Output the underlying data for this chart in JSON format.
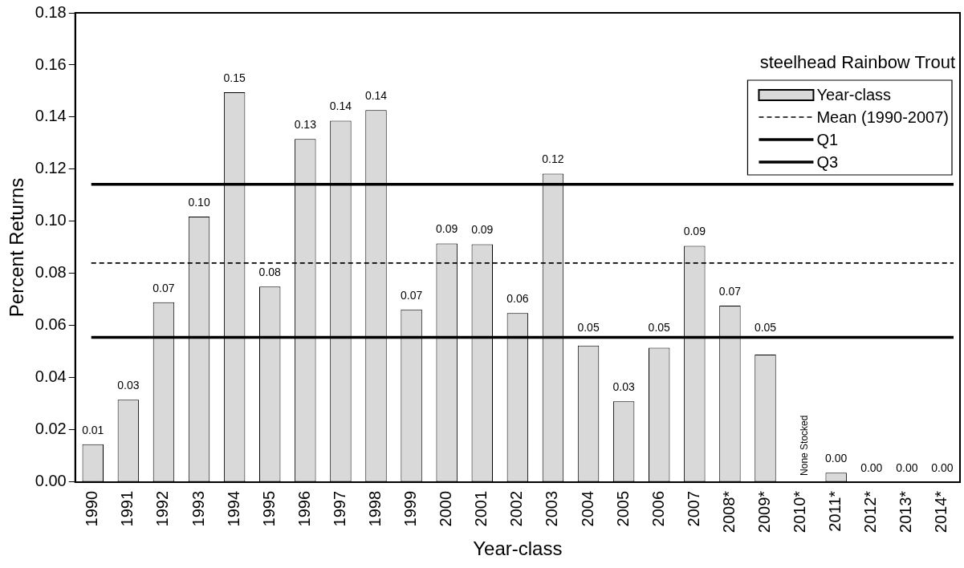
{
  "chart_data": {
    "type": "bar",
    "xlabel": "Year-class",
    "ylabel": "Percent Returns",
    "legend_title": "steelhead Rainbow Trout",
    "legend": "top right",
    "categories": [
      "1990",
      "1991",
      "1992",
      "1993",
      "1994",
      "1995",
      "1996",
      "1997",
      "1998",
      "1999",
      "2000",
      "2001",
      "2002",
      "2003",
      "2004",
      "2005",
      "2006",
      "2007",
      "2008*",
      "2009*",
      "2010*",
      "2011*",
      "2012*",
      "2013*",
      "2014*"
    ],
    "series": [
      {
        "name": "Year-class",
        "color": "#d9d9d9",
        "values": [
          0.0145,
          0.0316,
          0.069,
          0.1018,
          0.1495,
          0.075,
          0.1316,
          0.1386,
          0.1427,
          0.0662,
          0.0915,
          0.0912,
          0.0648,
          0.1183,
          0.0524,
          0.031,
          0.0515,
          0.0906,
          0.0677,
          0.0489,
          null,
          0.0036,
          0,
          0,
          0
        ],
        "value_labels": [
          "0.01",
          "0.03",
          "0.07",
          "0.10",
          "0.15",
          "0.08",
          "0.13",
          "0.14",
          "0.14",
          "0.07",
          "0.09",
          "0.09",
          "0.06",
          "0.12",
          "0.05",
          "0.03",
          "0.05",
          "0.09",
          "0.07",
          "0.05",
          "None Stocked",
          "0.00",
          "0.00",
          "0.00",
          "0.00"
        ]
      }
    ],
    "ylim": [
      0,
      0.18
    ],
    "yticks": [
      {
        "value": 0,
        "label": "0.00"
      },
      {
        "value": 0.02,
        "label": "0.02"
      },
      {
        "value": 0.04,
        "label": "0.04"
      },
      {
        "value": 0.06,
        "label": "0.06"
      },
      {
        "value": 0.08,
        "label": "0.08"
      },
      {
        "value": 0.1,
        "label": "0.10"
      },
      {
        "value": 0.12,
        "label": "0.12"
      },
      {
        "value": 0.14,
        "label": "0.14"
      },
      {
        "value": 0.16,
        "label": "0.16"
      },
      {
        "value": 0.18,
        "label": "0.18"
      }
    ],
    "ref_lines": [
      {
        "axis": "y",
        "value": 0.084,
        "label": "Mean (1990-2007)",
        "line_style": "dashed",
        "color": "#000000"
      },
      {
        "axis": "y",
        "value": 0.0555,
        "label": "Q1",
        "line_style": "solid",
        "color": "#000000"
      },
      {
        "axis": "y",
        "value": 0.1142,
        "label": "Q3",
        "line_style": "solid",
        "color": "#000000"
      }
    ],
    "grid": false
  }
}
